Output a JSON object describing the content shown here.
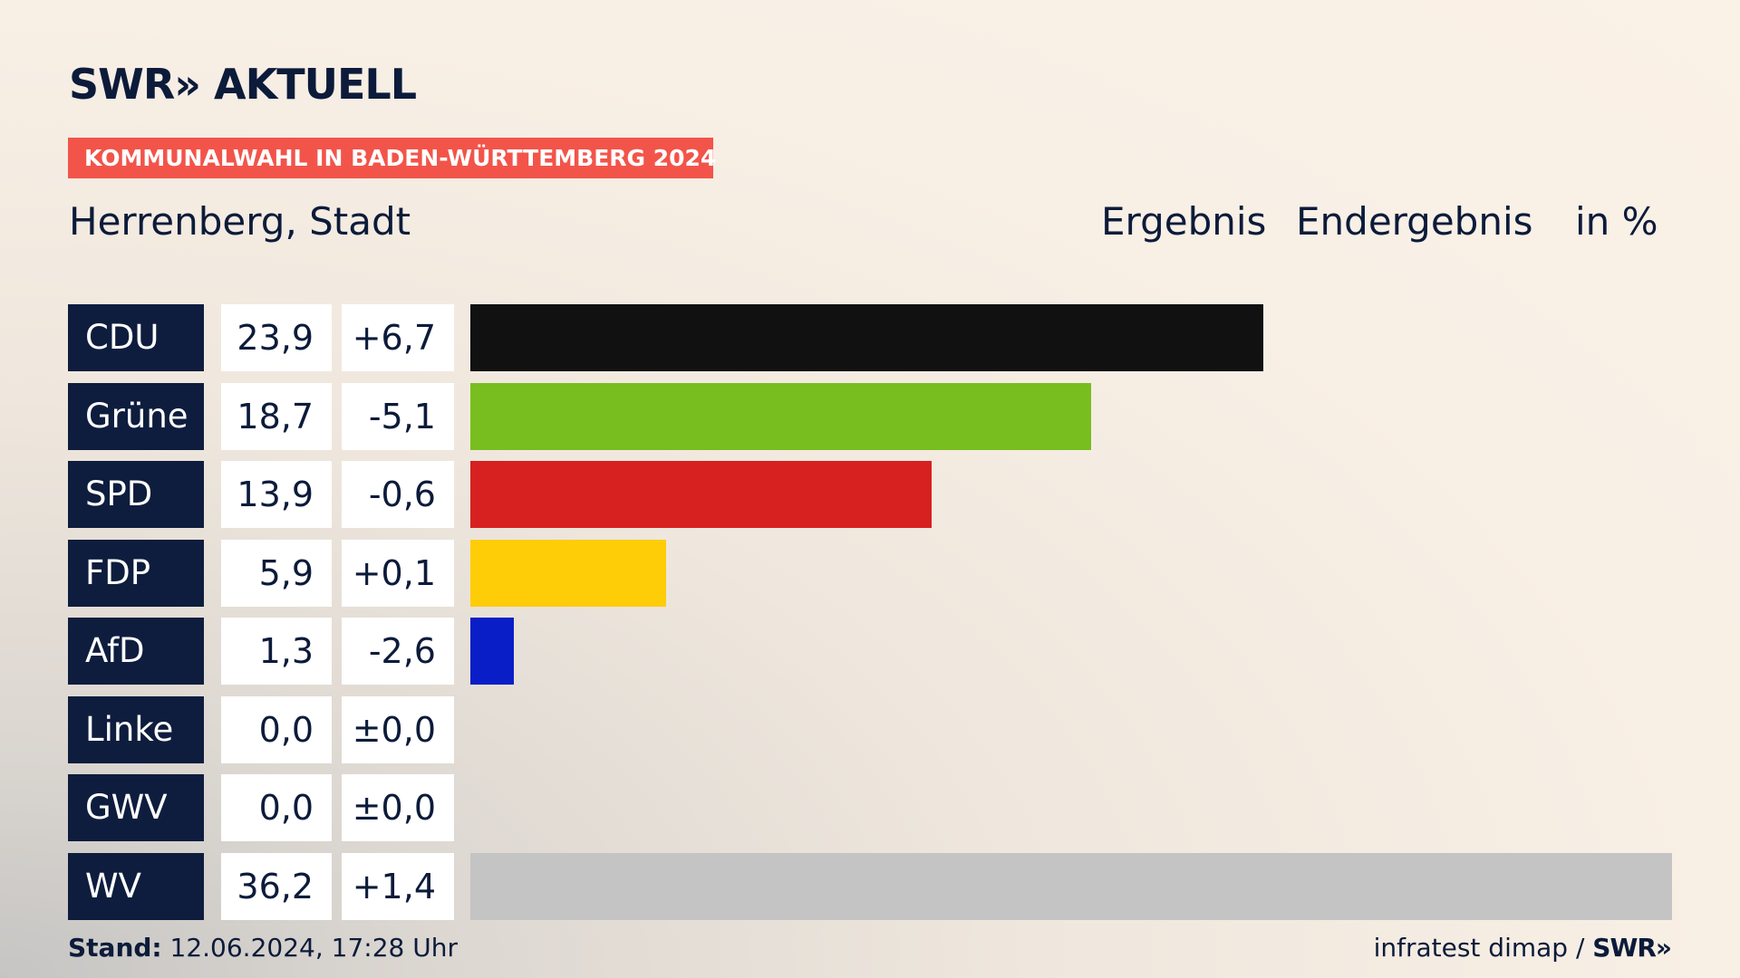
{
  "header": {
    "logo": "SWR» AKTUELL",
    "banner": "KOMMUNALWAHL IN BADEN-WÜRTTEMBERG 2024",
    "region": "Herrenberg, Stadt",
    "col_result": "Ergebnis",
    "col_final": "Endergebnis",
    "col_unit": "in %"
  },
  "footer": {
    "stand_label": "Stand:",
    "stand_value": " 12.06.2024, 17:28 Uhr",
    "source": "infratest dimap / ",
    "source_brand": "SWR»"
  },
  "chart_data": {
    "type": "bar",
    "orientation": "horizontal",
    "categories": [
      "CDU",
      "Grüne",
      "SPD",
      "FDP",
      "AfD",
      "Linke",
      "GWV",
      "WV"
    ],
    "values": [
      23.9,
      18.7,
      13.9,
      5.9,
      1.3,
      0.0,
      0.0,
      36.2
    ],
    "value_labels": [
      "23,9",
      "18,7",
      "13,9",
      "5,9",
      "1,3",
      "0,0",
      "0,0",
      "36,2"
    ],
    "diff_labels": [
      "+6,7",
      "-5,1",
      "-0,6",
      "+0,1",
      "-2,6",
      "±0,0",
      "±0,0",
      "+1,4"
    ],
    "colors": [
      "#111111",
      "#78be1e",
      "#d62120",
      "#ffcc08",
      "#0a1ec8",
      "#b3006e",
      "#7f8a99",
      "#c4c4c4"
    ],
    "xlim": [
      0,
      36.2
    ]
  }
}
